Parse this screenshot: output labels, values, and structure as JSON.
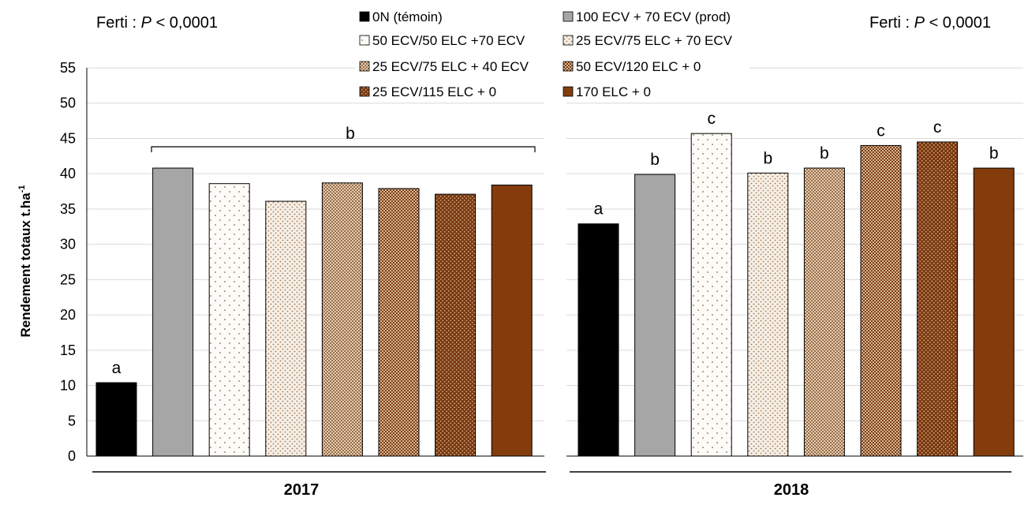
{
  "chart_data": {
    "type": "bar",
    "ylabel": "Rendement totaux  t.ha",
    "ylabel_superscript": "-1",
    "ylim": [
      0,
      55
    ],
    "yticks": [
      "0",
      "5",
      "10",
      "15",
      "20",
      "25",
      "30",
      "35",
      "40",
      "45",
      "50",
      "55"
    ],
    "grid": true,
    "legend_position": "top",
    "legend": [
      {
        "label": "0N (témoin)",
        "pattern": "solid-black"
      },
      {
        "label": "100 ECV + 70 ECV (prod)",
        "pattern": "solid-gray"
      },
      {
        "label": "50 ECV/50 ELC +70 ECV",
        "pattern": "dots-sparse"
      },
      {
        "label": "25 ECV/75 ELC + 70 ECV",
        "pattern": "dots-medium"
      },
      {
        "label": "25 ECV/75 ELC + 40 ECV",
        "pattern": "checker-light"
      },
      {
        "label": "50 ECV/120 ELC + 0",
        "pattern": "checker-dark"
      },
      {
        "label": "25 ECV/115 ELC + 0",
        "pattern": "dots-dark"
      },
      {
        "label": "170 ELC + 0",
        "pattern": "solid-brown"
      }
    ],
    "panels": [
      {
        "year": "2017",
        "stat_text_prefix": "Ferti : ",
        "stat_text_var": "P",
        "stat_text_suffix": " < 0,0001",
        "values": [
          10.4,
          40.8,
          38.6,
          36.1,
          38.7,
          37.9,
          37.1,
          38.4
        ],
        "letters": [
          "a",
          "",
          "",
          "",
          "",
          "",
          "",
          ""
        ],
        "group_letter": "b"
      },
      {
        "year": "2018",
        "stat_text_prefix": "Ferti : ",
        "stat_text_var": "P",
        "stat_text_suffix": " < 0,0001",
        "values": [
          32.9,
          39.9,
          45.7,
          40.1,
          40.8,
          44.0,
          44.5,
          40.8
        ],
        "letters": [
          "a",
          "b",
          "c",
          "b",
          "b",
          "c",
          "c",
          "b"
        ]
      }
    ],
    "colors": {
      "black": "#000000",
      "gray": "#a6a6a6",
      "brown": "#843c0c",
      "light_brown": "#c9a27d",
      "grid": "#d9d9d9"
    }
  }
}
